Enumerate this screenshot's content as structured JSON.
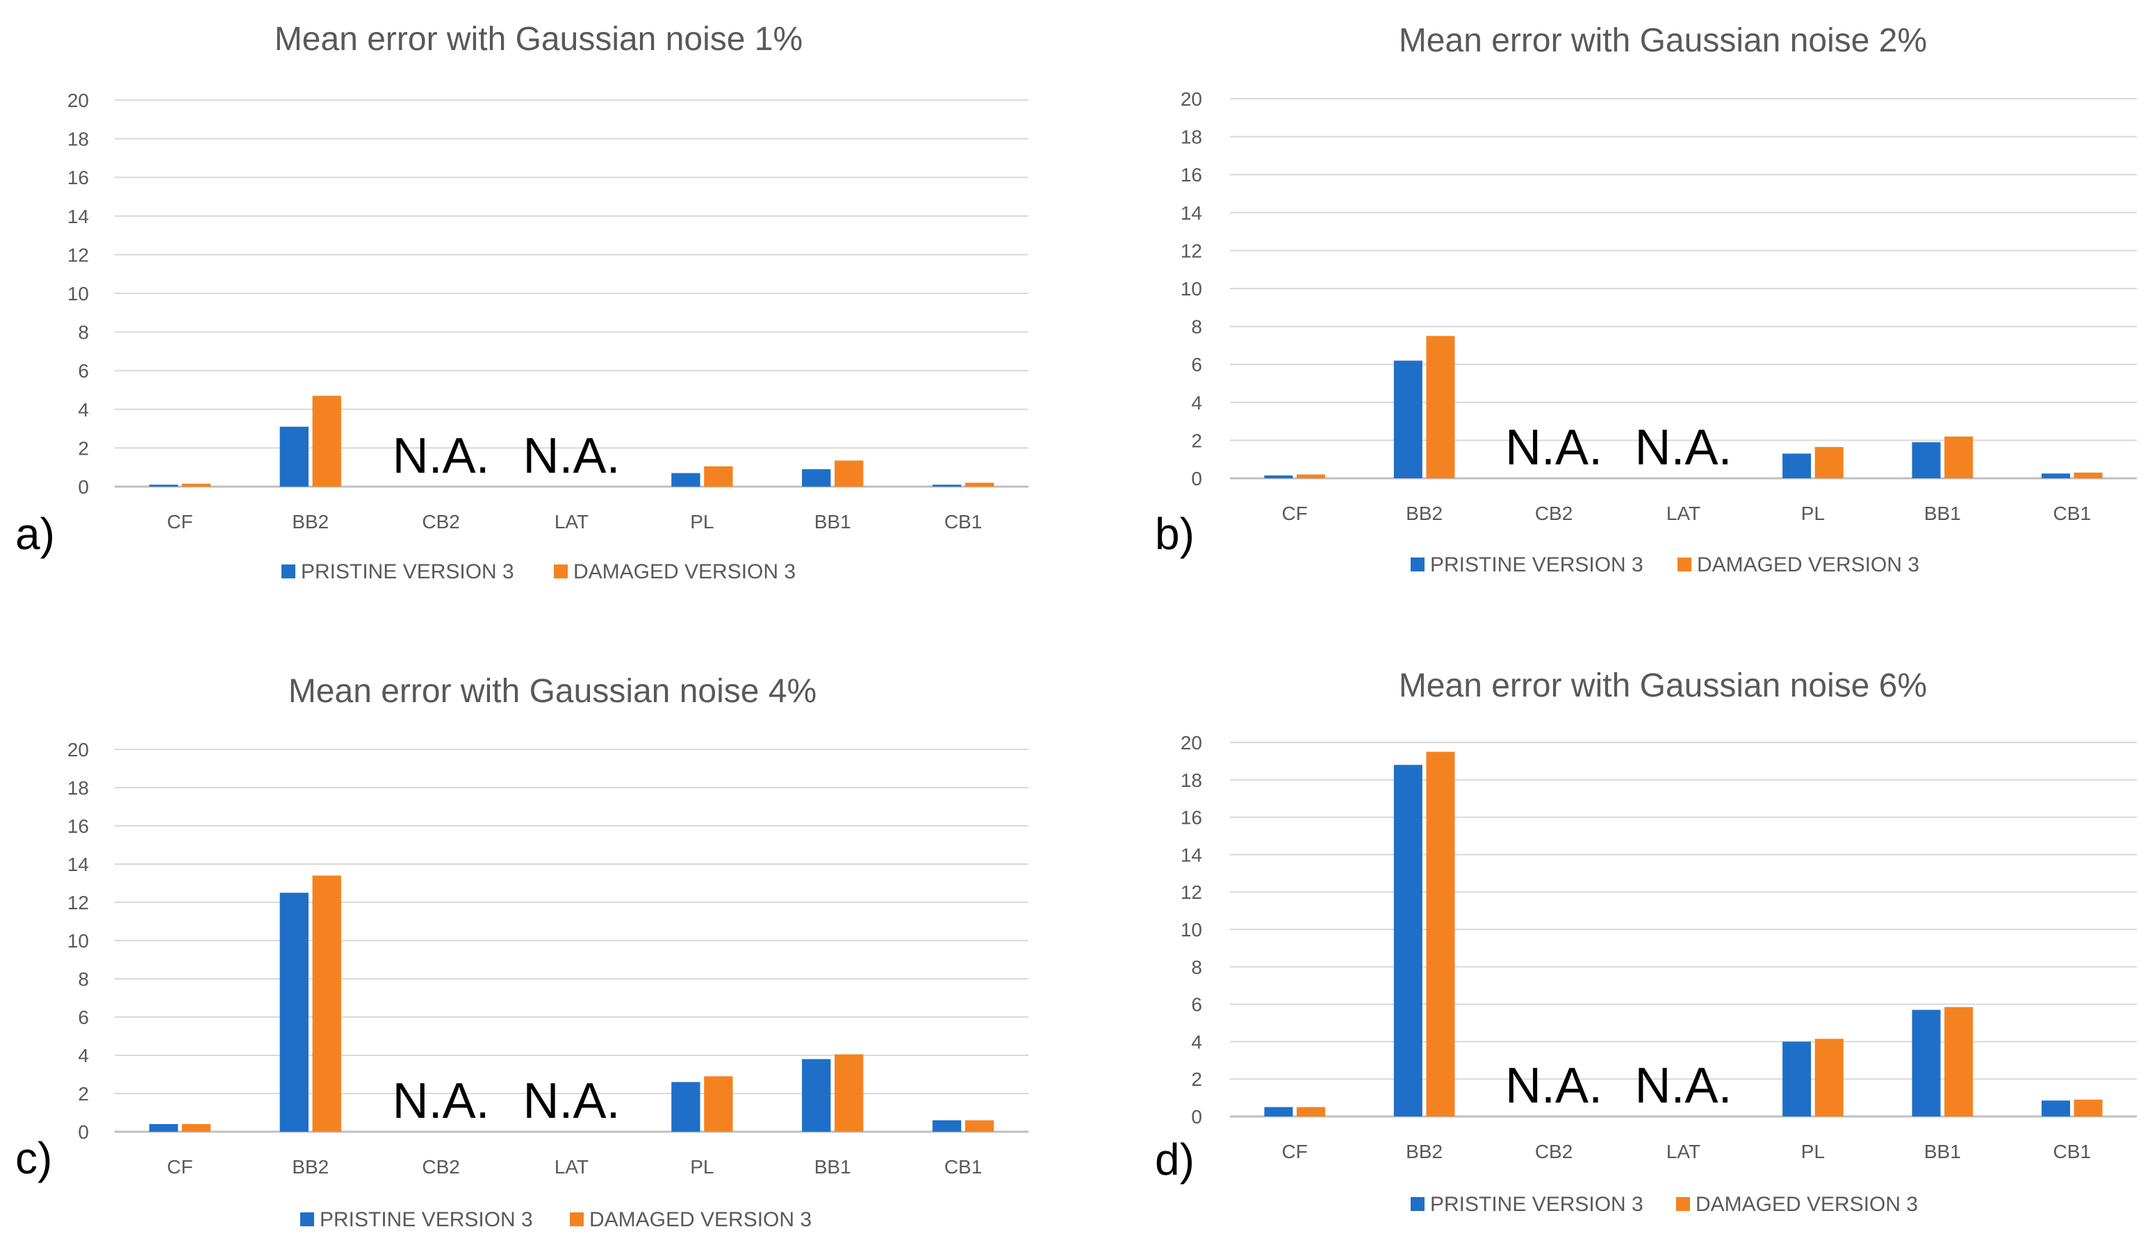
{
  "colors": {
    "pristine": "#1f6fc9",
    "damaged": "#f58220"
  },
  "chart_data": [
    {
      "type": "bar",
      "panel_label": "a)",
      "title": "Mean error with Gaussian noise 1%",
      "categories": [
        "CF",
        "BB2",
        "CB2",
        "LAT",
        "PL",
        "BB1",
        "CB1"
      ],
      "series": [
        {
          "name": "PRISTINE VERSION 3",
          "values": [
            0.1,
            3.1,
            null,
            null,
            0.7,
            0.9,
            0.1
          ]
        },
        {
          "name": "DAMAGED VERSION 3",
          "values": [
            0.15,
            4.7,
            null,
            null,
            1.05,
            1.35,
            0.2
          ]
        }
      ],
      "annotations": [
        {
          "category": "CB2",
          "text": "N.A."
        },
        {
          "category": "LAT",
          "text": "N.A."
        }
      ],
      "yticks": [
        "0",
        "2",
        "4",
        "6",
        "8",
        "10",
        "12",
        "14",
        "16",
        "18",
        "20"
      ],
      "ylim": [
        0,
        20
      ],
      "grid": true,
      "legend": "bottom"
    },
    {
      "type": "bar",
      "panel_label": "b)",
      "title": "Mean error with Gaussian noise 2%",
      "categories": [
        "CF",
        "BB2",
        "CB2",
        "LAT",
        "PL",
        "BB1",
        "CB1"
      ],
      "series": [
        {
          "name": "PRISTINE VERSION 3",
          "values": [
            0.15,
            6.2,
            null,
            null,
            1.3,
            1.9,
            0.25
          ]
        },
        {
          "name": "DAMAGED VERSION 3",
          "values": [
            0.2,
            7.5,
            null,
            null,
            1.65,
            2.2,
            0.3
          ]
        }
      ],
      "annotations": [
        {
          "category": "CB2",
          "text": "N.A."
        },
        {
          "category": "LAT",
          "text": "N.A."
        }
      ],
      "yticks": [
        "0",
        "2",
        "4",
        "6",
        "8",
        "10",
        "12",
        "14",
        "16",
        "18",
        "20"
      ],
      "ylim": [
        0,
        20
      ],
      "grid": true,
      "legend": "bottom"
    },
    {
      "type": "bar",
      "panel_label": "c)",
      "title": "Mean error with Gaussian noise 4%",
      "categories": [
        "CF",
        "BB2",
        "CB2",
        "LAT",
        "PL",
        "BB1",
        "CB1"
      ],
      "series": [
        {
          "name": "PRISTINE VERSION 3",
          "values": [
            0.4,
            12.5,
            null,
            null,
            2.6,
            3.8,
            0.6
          ]
        },
        {
          "name": "DAMAGED VERSION 3",
          "values": [
            0.4,
            13.4,
            null,
            null,
            2.9,
            4.05,
            0.6
          ]
        }
      ],
      "annotations": [
        {
          "category": "CB2",
          "text": "N.A."
        },
        {
          "category": "LAT",
          "text": "N.A."
        }
      ],
      "yticks": [
        "0",
        "2",
        "4",
        "6",
        "8",
        "10",
        "12",
        "14",
        "16",
        "18",
        "20"
      ],
      "ylim": [
        0,
        20
      ],
      "grid": true,
      "legend": "bottom"
    },
    {
      "type": "bar",
      "panel_label": "d)",
      "title": "Mean error with Gaussian noise 6%",
      "categories": [
        "CF",
        "BB2",
        "CB2",
        "LAT",
        "PL",
        "BB1",
        "CB1"
      ],
      "series": [
        {
          "name": "PRISTINE VERSION 3",
          "values": [
            0.5,
            18.8,
            null,
            null,
            4.0,
            5.7,
            0.85
          ]
        },
        {
          "name": "DAMAGED VERSION 3",
          "values": [
            0.5,
            19.5,
            null,
            null,
            4.15,
            5.85,
            0.9
          ]
        }
      ],
      "annotations": [
        {
          "category": "CB2",
          "text": "N.A."
        },
        {
          "category": "LAT",
          "text": "N.A."
        }
      ],
      "yticks": [
        "0",
        "2",
        "4",
        "6",
        "8",
        "10",
        "12",
        "14",
        "16",
        "18",
        "20"
      ],
      "ylim": [
        0,
        20
      ],
      "grid": true,
      "legend": "bottom"
    }
  ]
}
